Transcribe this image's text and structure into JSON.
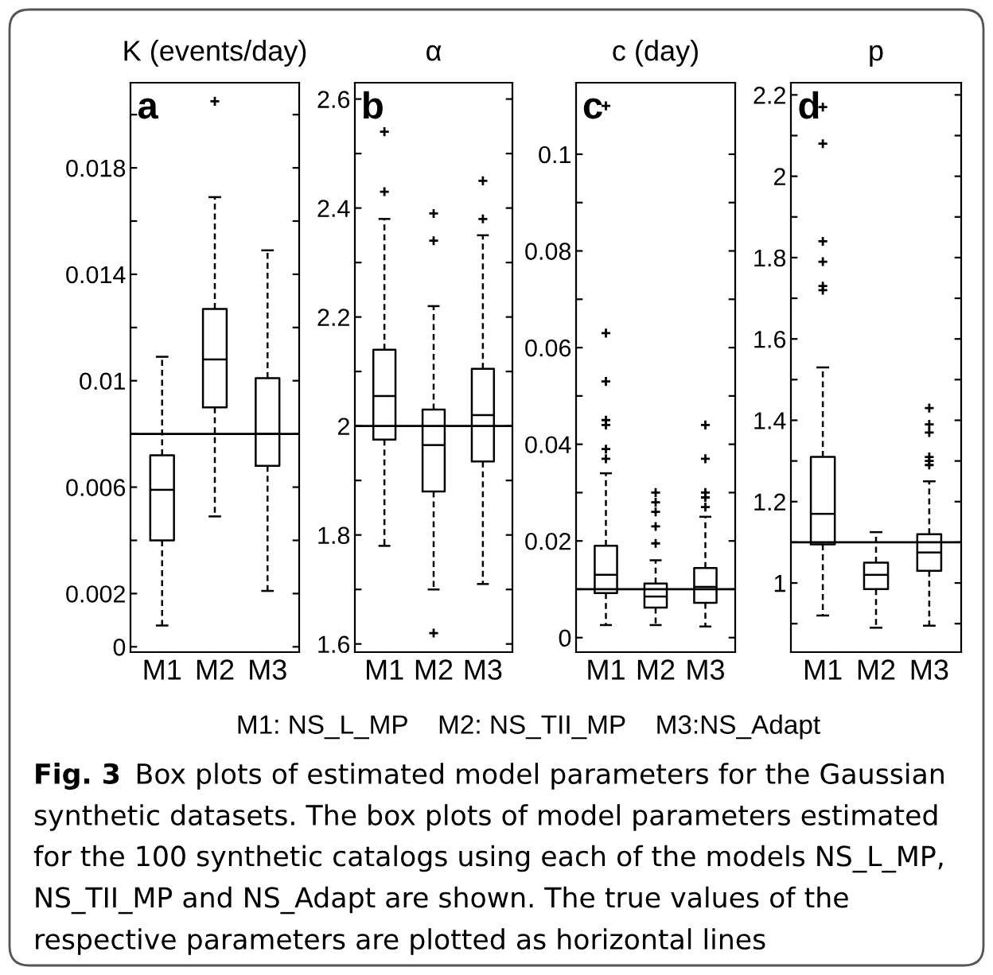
{
  "chart_data": [
    {
      "type": "box",
      "title": "K (events/day)",
      "categories": [
        "M1",
        "M2",
        "M3"
      ],
      "boxes": [
        {
          "low": 0.0008,
          "q1": 0.004,
          "median": 0.0059,
          "q3": 0.0072,
          "high": 0.0109
        },
        {
          "low": 0.0049,
          "q1": 0.009,
          "median": 0.0108,
          "q3": 0.0127,
          "high": 0.0169,
          "outliers": [
            0.0205
          ]
        },
        {
          "low": 0.0021,
          "q1": 0.0068,
          "median": 0.008,
          "q3": 0.0101,
          "high": 0.0149
        }
      ],
      "ylim": [
        -0.0002,
        0.0212
      ],
      "yticks": [
        0,
        0.002,
        {
          "value": 0.004,
          "label": null
        },
        0.006,
        {
          "value": 0.008,
          "label": null
        },
        0.01,
        {
          "value": 0.012,
          "label": null
        },
        0.014,
        {
          "value": 0.016,
          "label": null
        },
        0.018,
        {
          "value": 0.02,
          "label": null
        }
      ],
      "ref_lines": [
        {
          "axis": "y",
          "value": 0.008,
          "color": "#000000"
        }
      ],
      "grid": false,
      "marker": "cross",
      "annotations": [
        "a",
        "M1: NS_L_MP    M2: NS_TII_MP    M3:NS_Adapt",
        "Fig. 3",
        "Box plots of estimated model parameters for the Gaussian synthetic datasets. The box plots of model parameters estimated for the 100 synthetic catalogs using each of the models NS_L_MP, NS_TII_MP and NS_Adapt are shown. The true values of the respective parameters are plotted as horizontal lines"
      ]
    },
    {
      "type": "box",
      "title": "α",
      "categories": [
        "M1",
        "M2",
        "M3"
      ],
      "boxes": [
        {
          "low": 1.78,
          "q1": 1.975,
          "median": 2.055,
          "q3": 2.14,
          "high": 2.38,
          "outliers": [
            2.43,
            2.54
          ]
        },
        {
          "low": 1.7,
          "q1": 1.88,
          "median": 1.965,
          "q3": 2.03,
          "high": 2.22,
          "outliers": [
            1.62,
            2.34,
            2.39
          ]
        },
        {
          "low": 1.71,
          "q1": 1.935,
          "median": 2.02,
          "q3": 2.105,
          "high": 2.35,
          "outliers": [
            2.38,
            2.45
          ]
        }
      ],
      "ylim": [
        1.585,
        2.63
      ],
      "yticks": [
        1.6,
        {
          "value": 1.7,
          "label": null
        },
        1.8,
        {
          "value": 1.9,
          "label": null
        },
        2,
        {
          "value": 2.1,
          "label": null
        },
        2.2,
        {
          "value": 2.3,
          "label": null
        },
        2.4,
        {
          "value": 2.5,
          "label": null
        },
        2.6
      ],
      "ref_lines": [
        {
          "axis": "y",
          "value": 2,
          "color": "#000000"
        }
      ],
      "grid": false,
      "marker": "cross",
      "annotations": [
        "b"
      ]
    },
    {
      "type": "box",
      "title": "c (day)",
      "categories": [
        "M1",
        "M2",
        "M3"
      ],
      "boxes": [
        {
          "low": 0.0026,
          "q1": 0.0092,
          "median": 0.013,
          "q3": 0.019,
          "high": 0.034,
          "outliers": [
            0.037,
            0.039,
            0.044,
            0.045,
            0.053,
            0.063,
            0.11
          ]
        },
        {
          "low": 0.0026,
          "q1": 0.0062,
          "median": 0.0085,
          "q3": 0.0112,
          "high": 0.016,
          "outliers": [
            0.0195,
            0.023,
            0.026,
            0.028,
            0.03
          ]
        },
        {
          "low": 0.0023,
          "q1": 0.0072,
          "median": 0.0105,
          "q3": 0.0144,
          "high": 0.025,
          "outliers": [
            0.027,
            0.029,
            0.03,
            0.037,
            0.044
          ]
        }
      ],
      "ylim": [
        -0.003,
        0.1148
      ],
      "yticks": [
        0,
        {
          "value": 0.01,
          "label": null
        },
        0.02,
        {
          "value": 0.03,
          "label": null
        },
        0.04,
        {
          "value": 0.05,
          "label": null
        },
        0.06,
        {
          "value": 0.07,
          "label": null
        },
        0.08,
        {
          "value": 0.09,
          "label": null
        },
        0.1
      ],
      "ref_lines": [
        {
          "axis": "y",
          "value": 0.01,
          "color": "#000000"
        }
      ],
      "grid": false,
      "marker": "cross",
      "annotations": [
        "c"
      ]
    },
    {
      "type": "box",
      "title": "p",
      "categories": [
        "M1",
        "M2",
        "M3"
      ],
      "boxes": [
        {
          "low": 0.92,
          "q1": 1.095,
          "median": 1.17,
          "q3": 1.31,
          "high": 1.53,
          "outliers": [
            1.72,
            1.73,
            1.79,
            1.84,
            2.08,
            2.17
          ]
        },
        {
          "low": 0.89,
          "q1": 0.985,
          "median": 1.02,
          "q3": 1.05,
          "high": 1.125
        },
        {
          "low": 0.895,
          "q1": 1.03,
          "median": 1.075,
          "q3": 1.12,
          "high": 1.25,
          "outliers": [
            1.29,
            1.3,
            1.31,
            1.37,
            1.39,
            1.43
          ]
        }
      ],
      "ylim": [
        0.83,
        2.23
      ],
      "yticks": [
        {
          "value": 0.9,
          "label": null
        },
        1,
        {
          "value": 1.1,
          "label": null
        },
        1.2,
        {
          "value": 1.3,
          "label": null
        },
        1.4,
        {
          "value": 1.5,
          "label": null
        },
        1.6,
        {
          "value": 1.7,
          "label": null
        },
        1.8,
        {
          "value": 1.9,
          "label": null
        },
        2,
        {
          "value": 2.1,
          "label": null
        },
        2.2
      ],
      "ref_lines": [
        {
          "axis": "y",
          "value": 1.1,
          "color": "#000000"
        }
      ],
      "grid": false,
      "marker": "cross",
      "annotations": [
        "d"
      ]
    }
  ]
}
